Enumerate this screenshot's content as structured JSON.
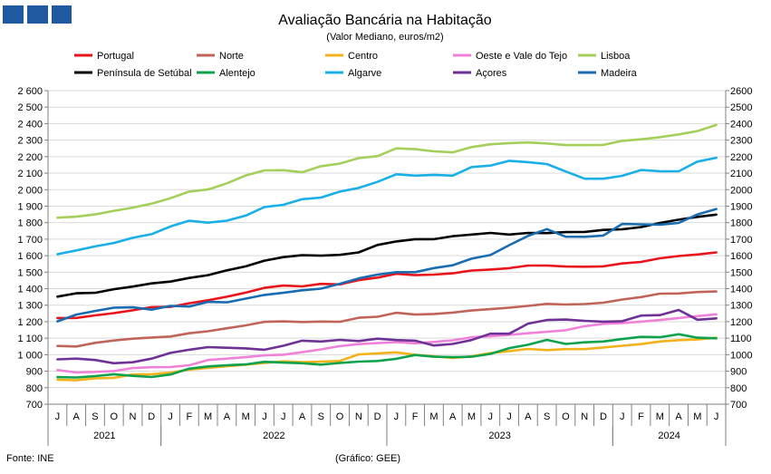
{
  "chart_data": {
    "type": "line",
    "title": "Avaliação Bancária na Habitação",
    "subtitle": "(Valor Mediano, euros/m2)",
    "source": "Fonte: INE",
    "credit": "(Gráfico: GEE)",
    "ylim": [
      700,
      2600
    ],
    "y_ticks_left": [
      "700",
      "800",
      "900",
      "1 000",
      "1 100",
      "1 200",
      "1 300",
      "1 400",
      "1 500",
      "1 600",
      "1 700",
      "1 800",
      "1 900",
      "2 000",
      "2 100",
      "2 200",
      "2 300",
      "2 400",
      "2 500",
      "2 600"
    ],
    "y_ticks_right": [
      "700",
      "800",
      "900",
      "1000",
      "1100",
      "1200",
      "1300",
      "1400",
      "1500",
      "1600",
      "1700",
      "1800",
      "1900",
      "2000",
      "2100",
      "2200",
      "2300",
      "2400",
      "2500",
      "2600"
    ],
    "months": [
      "J",
      "A",
      "S",
      "O",
      "N",
      "D",
      "J",
      "F",
      "M",
      "A",
      "M",
      "J",
      "J",
      "A",
      "S",
      "O",
      "N",
      "D",
      "J",
      "F",
      "M",
      "A",
      "M",
      "J",
      "J",
      "A",
      "S",
      "O",
      "N",
      "D",
      "J",
      "F",
      "M",
      "A",
      "M",
      "J"
    ],
    "years": [
      {
        "label": "2021",
        "start": 0,
        "end": 6
      },
      {
        "label": "2022",
        "start": 6,
        "end": 18
      },
      {
        "label": "2023",
        "start": 18,
        "end": 30
      },
      {
        "label": "2024",
        "start": 30,
        "end": 36
      }
    ],
    "series": [
      {
        "name": "Portugal",
        "color": "#e8141c",
        "values": [
          1222,
          1223,
          1238,
          1252,
          1269,
          1288,
          1290,
          1312,
          1330,
          1351,
          1376,
          1405,
          1419,
          1414,
          1429,
          1426,
          1452,
          1467,
          1490,
          1482,
          1485,
          1493,
          1510,
          1516,
          1524,
          1540,
          1540,
          1534,
          1533,
          1535,
          1553,
          1562,
          1584,
          1598,
          1607,
          1620
        ]
      },
      {
        "name": "Norte",
        "color": "#c0645a",
        "values": [
          1053,
          1050,
          1072,
          1086,
          1097,
          1104,
          1110,
          1130,
          1142,
          1160,
          1178,
          1199,
          1202,
          1198,
          1201,
          1199,
          1224,
          1230,
          1254,
          1243,
          1247,
          1255,
          1268,
          1276,
          1285,
          1296,
          1308,
          1304,
          1307,
          1315,
          1334,
          1349,
          1370,
          1371,
          1380,
          1383
        ]
      },
      {
        "name": "Centro",
        "color": "#f2b21c",
        "values": [
          848,
          845,
          857,
          860,
          880,
          882,
          891,
          910,
          920,
          930,
          940,
          950,
          960,
          955,
          958,
          962,
          1002,
          1008,
          1014,
          1000,
          990,
          980,
          990,
          1010,
          1022,
          1035,
          1028,
          1034,
          1034,
          1044,
          1054,
          1064,
          1080,
          1088,
          1092,
          1103
        ]
      },
      {
        "name": "Oeste e Vale do Tejo",
        "color": "#ef82d8",
        "values": [
          907,
          893,
          896,
          901,
          919,
          924,
          925,
          936,
          968,
          976,
          985,
          996,
          1000,
          1015,
          1032,
          1052,
          1064,
          1070,
          1076,
          1069,
          1077,
          1087,
          1106,
          1112,
          1120,
          1130,
          1139,
          1148,
          1173,
          1187,
          1192,
          1200,
          1210,
          1222,
          1234,
          1245
        ]
      },
      {
        "name": "Lisboa",
        "color": "#a4cf5a",
        "values": [
          1830,
          1836,
          1850,
          1872,
          1891,
          1915,
          1948,
          1988,
          2001,
          2038,
          2086,
          2117,
          2118,
          2105,
          2142,
          2158,
          2191,
          2203,
          2250,
          2245,
          2232,
          2226,
          2258,
          2275,
          2282,
          2286,
          2280,
          2270,
          2270,
          2271,
          2296,
          2305,
          2318,
          2335,
          2355,
          2392
        ]
      },
      {
        "name": "Península de Setúbal",
        "color": "#000000",
        "values": [
          1352,
          1372,
          1375,
          1397,
          1413,
          1432,
          1443,
          1465,
          1482,
          1511,
          1535,
          1570,
          1591,
          1603,
          1600,
          1605,
          1620,
          1665,
          1686,
          1700,
          1700,
          1718,
          1728,
          1738,
          1728,
          1738,
          1737,
          1743,
          1744,
          1756,
          1760,
          1773,
          1798,
          1818,
          1835,
          1849
        ]
      },
      {
        "name": "Alentejo",
        "color": "#0fa24c",
        "values": [
          864,
          862,
          870,
          882,
          872,
          865,
          880,
          915,
          929,
          936,
          941,
          957,
          952,
          948,
          940,
          950,
          958,
          962,
          975,
          998,
          988,
          985,
          988,
          1005,
          1040,
          1060,
          1090,
          1065,
          1075,
          1080,
          1095,
          1108,
          1106,
          1124,
          1103,
          1099
        ]
      },
      {
        "name": "Algarve",
        "color": "#1aafe6",
        "values": [
          1609,
          1632,
          1656,
          1677,
          1708,
          1730,
          1777,
          1812,
          1800,
          1812,
          1843,
          1895,
          1908,
          1942,
          1952,
          1988,
          2010,
          2047,
          2093,
          2085,
          2090,
          2085,
          2137,
          2146,
          2175,
          2167,
          2155,
          2110,
          2066,
          2066,
          2084,
          2119,
          2112,
          2111,
          2170,
          2193
        ]
      },
      {
        "name": "Açores",
        "color": "#6e3296",
        "values": [
          972,
          976,
          968,
          948,
          954,
          976,
          1011,
          1030,
          1046,
          1042,
          1038,
          1030,
          1054,
          1085,
          1080,
          1090,
          1083,
          1097,
          1089,
          1085,
          1056,
          1065,
          1089,
          1127,
          1127,
          1188,
          1210,
          1213,
          1205,
          1200,
          1203,
          1237,
          1240,
          1271,
          1212,
          1220
        ]
      },
      {
        "name": "Madeira",
        "color": "#1a6cb0",
        "values": [
          1202,
          1243,
          1265,
          1285,
          1287,
          1273,
          1296,
          1292,
          1320,
          1317,
          1340,
          1362,
          1375,
          1390,
          1400,
          1430,
          1462,
          1485,
          1500,
          1500,
          1525,
          1542,
          1582,
          1604,
          1664,
          1720,
          1761,
          1715,
          1714,
          1722,
          1792,
          1790,
          1788,
          1798,
          1850,
          1883
        ]
      }
    ]
  }
}
